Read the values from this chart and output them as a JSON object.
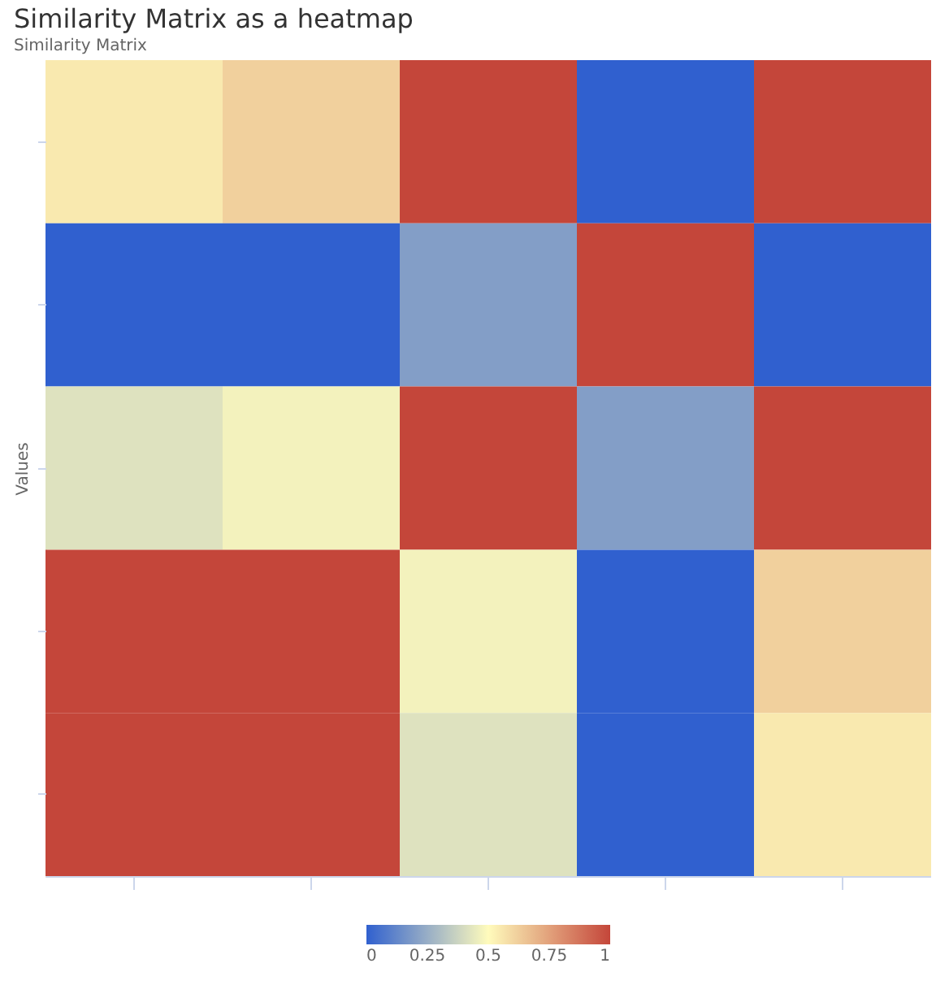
{
  "chart_data": {
    "type": "heatmap",
    "title": "Similarity Matrix as a heatmap",
    "subtitle": "Similarity Matrix",
    "ylabel": "Values",
    "categories": [
      null,
      null,
      null,
      null,
      null
    ],
    "y_categories": [
      null,
      null,
      null,
      null,
      null
    ],
    "cells": [
      [
        0.55,
        0.62,
        1,
        0,
        1
      ],
      [
        0,
        0,
        0.2,
        1,
        0
      ],
      [
        0.42,
        0.47,
        1,
        0.2,
        1
      ],
      [
        1,
        1,
        0.47,
        0,
        0.62
      ],
      [
        1,
        1,
        0.42,
        0,
        0.55
      ]
    ],
    "clim": [
      0,
      1
    ],
    "cticks": [
      0,
      0.25,
      0.5,
      0.75,
      1
    ],
    "colors": [
      "#3060cf",
      "#fffbbc",
      "#c4463a"
    ],
    "tick_labels": false,
    "grid": false
  }
}
